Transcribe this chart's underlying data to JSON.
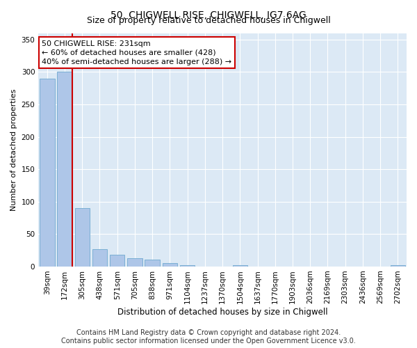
{
  "title1": "50, CHIGWELL RISE, CHIGWELL, IG7 6AG",
  "title2": "Size of property relative to detached houses in Chigwell",
  "xlabel": "Distribution of detached houses by size in Chigwell",
  "ylabel": "Number of detached properties",
  "footer1": "Contains HM Land Registry data © Crown copyright and database right 2024.",
  "footer2": "Contains public sector information licensed under the Open Government Licence v3.0.",
  "categories": [
    "39sqm",
    "172sqm",
    "305sqm",
    "438sqm",
    "571sqm",
    "705sqm",
    "838sqm",
    "971sqm",
    "1104sqm",
    "1237sqm",
    "1370sqm",
    "1504sqm",
    "1637sqm",
    "1770sqm",
    "1903sqm",
    "2036sqm",
    "2169sqm",
    "2303sqm",
    "2436sqm",
    "2569sqm",
    "2702sqm"
  ],
  "values": [
    290,
    300,
    90,
    27,
    18,
    13,
    11,
    5,
    2,
    0,
    0,
    2,
    0,
    0,
    0,
    0,
    0,
    0,
    0,
    0,
    2
  ],
  "bar_color": "#aec6e8",
  "bar_edge_color": "#7aafd4",
  "red_line_color": "#cc0000",
  "red_line_x": 1.43,
  "annotation_line1": "50 CHIGWELL RISE: 231sqm",
  "annotation_line2": "← 60% of detached houses are smaller (428)",
  "annotation_line3": "40% of semi-detached houses are larger (288) →",
  "annotation_box_facecolor": "#ffffff",
  "annotation_box_edgecolor": "#cc0000",
  "ylim": [
    0,
    360
  ],
  "yticks": [
    0,
    50,
    100,
    150,
    200,
    250,
    300,
    350
  ],
  "grid_color": "#ffffff",
  "bg_color": "#dce9f5",
  "fig_facecolor": "#ffffff",
  "title1_fontsize": 10,
  "title2_fontsize": 9,
  "xlabel_fontsize": 8.5,
  "ylabel_fontsize": 8,
  "tick_fontsize": 7.5,
  "footer_fontsize": 7,
  "annotation_fontsize": 8
}
